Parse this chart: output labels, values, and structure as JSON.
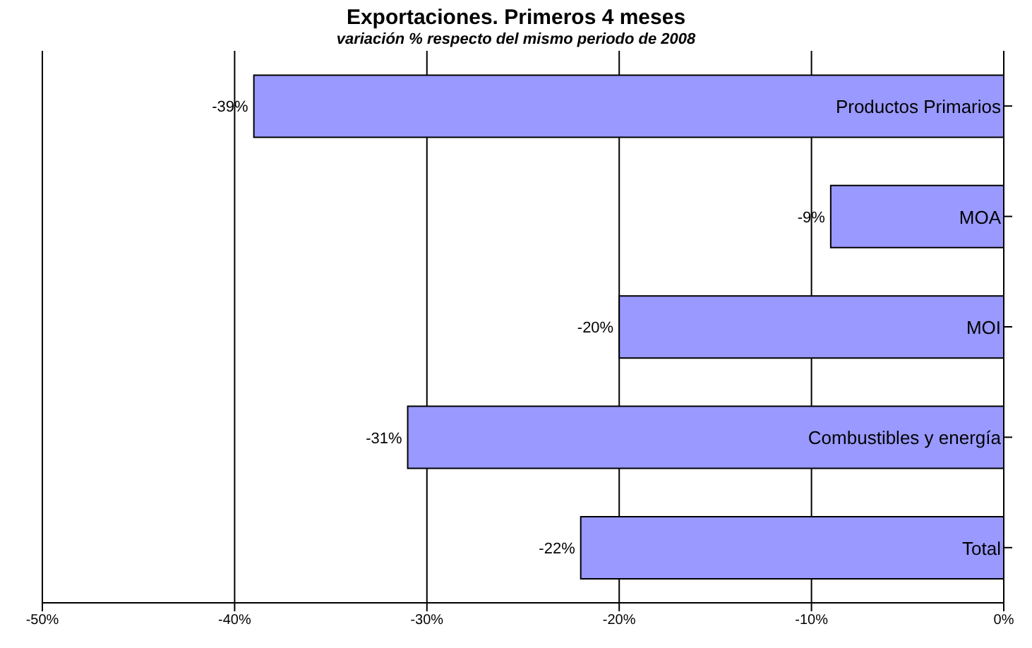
{
  "chart_data": {
    "type": "bar",
    "orientation": "horizontal",
    "title": "Exportaciones. Primeros 4 meses",
    "subtitle": "variación % respecto del mismo periodo de 2008",
    "categories": [
      "Productos Primarios",
      "MOA",
      "MOI",
      "Combustibles y energía",
      "Total"
    ],
    "values": [
      -39,
      -9,
      -20,
      -31,
      -22
    ],
    "value_labels": [
      "-39%",
      "-9%",
      "-20%",
      "-31%",
      "-22%"
    ],
    "color": "#9999ff",
    "xlim": [
      -50,
      0
    ],
    "xticks": [
      {
        "value": -50,
        "label": "-50%"
      },
      {
        "value": -40,
        "label": "-40%"
      },
      {
        "value": -30,
        "label": "-30%"
      },
      {
        "value": -20,
        "label": "-20%"
      },
      {
        "value": -10,
        "label": "-10%"
      },
      {
        "value": 0,
        "label": "0%"
      }
    ],
    "grid": "x"
  }
}
